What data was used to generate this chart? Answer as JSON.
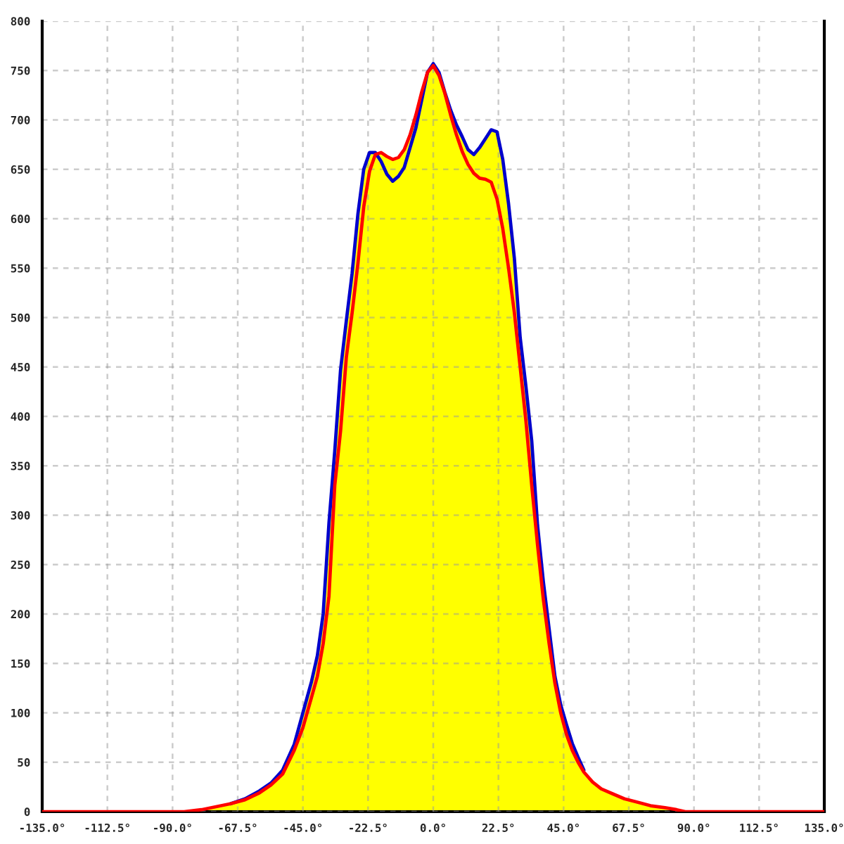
{
  "chart_data": {
    "type": "line",
    "x": [
      -135,
      -86,
      -80,
      -75,
      -70,
      -65,
      -60,
      -56,
      -52,
      -48,
      -45,
      -42,
      -40,
      -38,
      -36,
      -34,
      -32,
      -30,
      -28,
      -26,
      -24,
      -22,
      -20,
      -18,
      -16,
      -14,
      -12,
      -10,
      -8,
      -6,
      -4,
      -2,
      0,
      2,
      4,
      6,
      8,
      10,
      12,
      14,
      16,
      18,
      20,
      22,
      24,
      26,
      28,
      30,
      32,
      34,
      36,
      38,
      40,
      42,
      44,
      46,
      48,
      50,
      52,
      55,
      58,
      62,
      66,
      70,
      75,
      80,
      84,
      87,
      135
    ],
    "series": [
      {
        "type": "area",
        "color": "#ffff00",
        "values": [
          0,
          0,
          2,
          5,
          8,
          13,
          21,
          29,
          42,
          68,
          100,
          132,
          158,
          200,
          292,
          365,
          447,
          497,
          545,
          605,
          650,
          667,
          667,
          667,
          663,
          660,
          662,
          670,
          685,
          705,
          728,
          748,
          757,
          748,
          728,
          710,
          695,
          683,
          670,
          665,
          672,
          681,
          690,
          688,
          660,
          615,
          560,
          480,
          430,
          375,
          290,
          233,
          185,
          137,
          108,
          88,
          69,
          55,
          42,
          30,
          23,
          18,
          13,
          10,
          6,
          4,
          2,
          0,
          0
        ]
      },
      {
        "color": "#0000cc",
        "values": [
          null,
          null,
          null,
          null,
          8,
          13,
          21,
          29,
          42,
          68,
          100,
          132,
          158,
          200,
          292,
          365,
          447,
          497,
          545,
          605,
          650,
          667,
          667,
          658,
          645,
          638,
          643,
          652,
          672,
          692,
          720,
          748,
          757,
          748,
          728,
          710,
          695,
          683,
          670,
          665,
          672,
          681,
          690,
          688,
          660,
          615,
          560,
          480,
          430,
          375,
          290,
          233,
          185,
          137,
          108,
          88,
          69,
          55,
          42,
          null,
          null,
          null,
          null,
          null,
          null,
          null,
          null,
          null,
          null
        ]
      },
      {
        "color": "#ff0000",
        "values": [
          0,
          0,
          2,
          5,
          8,
          12,
          19,
          27,
          38,
          62,
          85,
          116,
          137,
          170,
          218,
          330,
          385,
          460,
          505,
          555,
          612,
          648,
          665,
          667,
          663,
          660,
          662,
          670,
          685,
          705,
          728,
          748,
          755,
          745,
          727,
          705,
          685,
          668,
          655,
          646,
          641,
          640,
          637,
          620,
          590,
          550,
          505,
          450,
          395,
          330,
          270,
          215,
          170,
          130,
          100,
          78,
          62,
          50,
          40,
          30,
          23,
          18,
          13,
          10,
          6,
          4,
          2,
          0,
          0
        ]
      }
    ],
    "xlim": [
      -135,
      135
    ],
    "xticks": [
      {
        "value": -135,
        "label": "-135.0°"
      },
      {
        "value": -112.5,
        "label": "-112.5°"
      },
      {
        "value": -90,
        "label": "-90.0°"
      },
      {
        "value": -67.5,
        "label": "-67.5°"
      },
      {
        "value": -45,
        "label": "-45.0°"
      },
      {
        "value": -22.5,
        "label": "-22.5°"
      },
      {
        "value": 0,
        "label": "0.0°"
      },
      {
        "value": 22.5,
        "label": "22.5°"
      },
      {
        "value": 45,
        "label": "45.0°"
      },
      {
        "value": 67.5,
        "label": "67.5°"
      },
      {
        "value": 90,
        "label": "90.0°"
      },
      {
        "value": 112.5,
        "label": "112.5°"
      },
      {
        "value": 135,
        "label": "135.0°"
      }
    ],
    "ylim": [
      0,
      800
    ],
    "yticks": [
      0,
      50,
      100,
      150,
      200,
      250,
      300,
      350,
      400,
      450,
      500,
      550,
      600,
      650,
      700,
      750,
      800
    ],
    "grid": true,
    "line_style": "solid"
  }
}
